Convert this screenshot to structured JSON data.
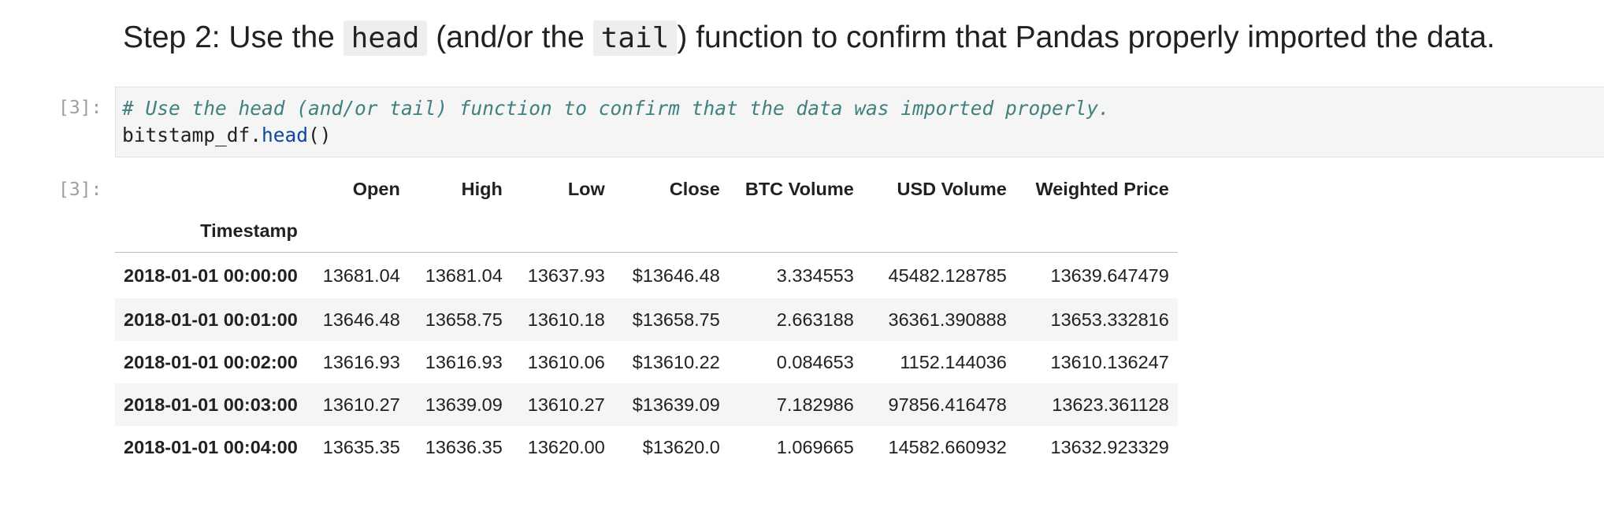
{
  "heading": {
    "part1": "Step 2: Use the ",
    "code1": "head",
    "part2": " (and/or the ",
    "code2": "tail",
    "part3": ") function to confirm that Pandas properly imported the data."
  },
  "input_cell": {
    "prompt": "[3]:",
    "comment": "# Use the head (and/or tail) function to confirm that the data was imported properly.",
    "code_object": "bitstamp_df.",
    "code_func": "head",
    "code_parens": "()"
  },
  "output_cell": {
    "prompt": "[3]:",
    "index_name": "Timestamp",
    "columns": [
      "Open",
      "High",
      "Low",
      "Close",
      "BTC Volume",
      "USD Volume",
      "Weighted Price"
    ],
    "rows": [
      {
        "index": "2018-01-01 00:00:00",
        "values": [
          "13681.04",
          "13681.04",
          "13637.93",
          "$13646.48",
          "3.334553",
          "45482.128785",
          "13639.647479"
        ]
      },
      {
        "index": "2018-01-01 00:01:00",
        "values": [
          "13646.48",
          "13658.75",
          "13610.18",
          "$13658.75",
          "2.663188",
          "36361.390888",
          "13653.332816"
        ]
      },
      {
        "index": "2018-01-01 00:02:00",
        "values": [
          "13616.93",
          "13616.93",
          "13610.06",
          "$13610.22",
          "0.084653",
          "1152.144036",
          "13610.136247"
        ]
      },
      {
        "index": "2018-01-01 00:03:00",
        "values": [
          "13610.27",
          "13639.09",
          "13610.27",
          "$13639.09",
          "7.182986",
          "97856.416478",
          "13623.361128"
        ]
      },
      {
        "index": "2018-01-01 00:04:00",
        "values": [
          "13635.35",
          "13636.35",
          "13620.00",
          "$13620.0",
          "1.069665",
          "14582.660932",
          "13632.923329"
        ]
      }
    ]
  }
}
